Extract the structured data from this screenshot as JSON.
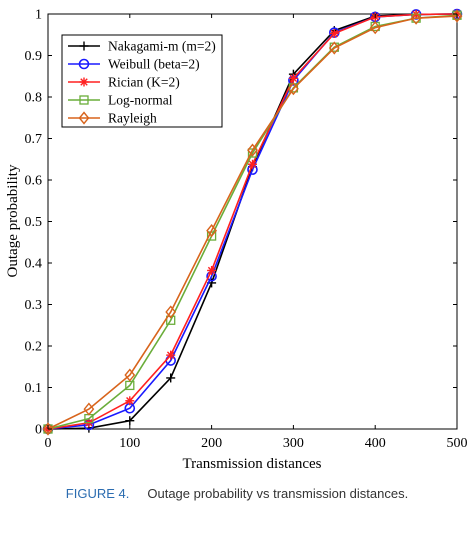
{
  "chart_data": {
    "type": "line",
    "title": "",
    "xlabel": "Transmission distances",
    "ylabel": "Outage probability",
    "xlim": [
      0,
      500
    ],
    "ylim": [
      0,
      1
    ],
    "x": [
      0,
      50,
      100,
      150,
      200,
      250,
      300,
      350,
      400,
      450,
      500
    ],
    "xticks": [
      "0",
      "100",
      "200",
      "300",
      "400",
      "500"
    ],
    "yticks": [
      "0",
      "0.1",
      "0.2",
      "0.3",
      "0.4",
      "0.5",
      "0.6",
      "0.7",
      "0.8",
      "0.9",
      "1"
    ],
    "grid": false,
    "legend_position": "top-left",
    "series": [
      {
        "name": "Nakagami-m (m=2)",
        "color": "#000000",
        "marker": "plus",
        "values": [
          0.0,
          0.002,
          0.02,
          0.123,
          0.352,
          0.632,
          0.855,
          0.96,
          0.995,
          0.999,
          1.0
        ]
      },
      {
        "name": "Weibull (beta=2)",
        "color": "#1a1aff",
        "marker": "circle",
        "values": [
          0.0,
          0.01,
          0.05,
          0.165,
          0.368,
          0.625,
          0.84,
          0.955,
          0.993,
          0.999,
          1.0
        ]
      },
      {
        "name": "Rician (K=2)",
        "color": "#ff2020",
        "marker": "star",
        "values": [
          0.0,
          0.015,
          0.068,
          0.178,
          0.382,
          0.638,
          0.845,
          0.953,
          0.993,
          0.999,
          1.0
        ]
      },
      {
        "name": "Log-normal",
        "color": "#6aad3a",
        "marker": "square",
        "values": [
          0.0,
          0.025,
          0.105,
          0.262,
          0.465,
          0.665,
          0.822,
          0.92,
          0.97,
          0.99,
          0.997
        ]
      },
      {
        "name": "Rayleigh",
        "color": "#d8641c",
        "marker": "diamond",
        "values": [
          0.0,
          0.048,
          0.13,
          0.282,
          0.478,
          0.672,
          0.82,
          0.918,
          0.967,
          0.99,
          0.995
        ]
      }
    ]
  },
  "caption": {
    "figure_label": "FIGURE 4.",
    "text": "Outage probability vs transmission distances."
  }
}
